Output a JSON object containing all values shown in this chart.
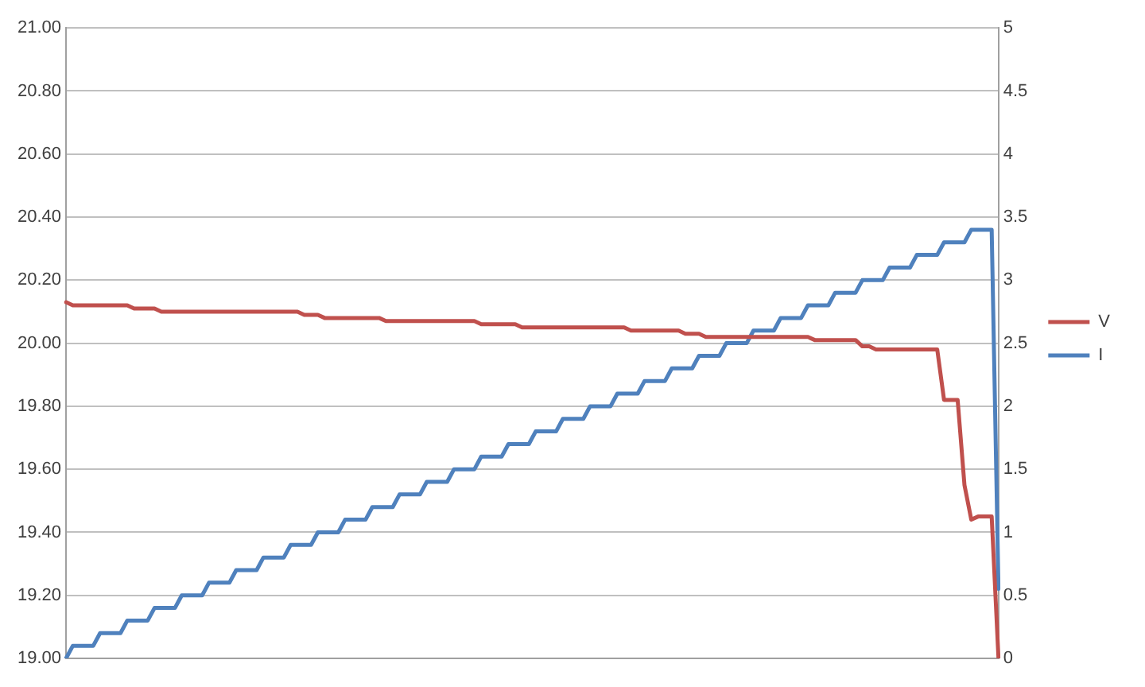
{
  "chart_data": {
    "type": "line",
    "categories": [
      null,
      null,
      null,
      null,
      null,
      null,
      null,
      null,
      null,
      null,
      null,
      null,
      null,
      null,
      null,
      null,
      null,
      null,
      null,
      null,
      null,
      null,
      null,
      null,
      null,
      null,
      null,
      null,
      null,
      null,
      null,
      null,
      null,
      null,
      null,
      null,
      null,
      null,
      null,
      null,
      null,
      null,
      null,
      null,
      null,
      null,
      null,
      null,
      null,
      null,
      null,
      null,
      null,
      null,
      null,
      null,
      null,
      null,
      null,
      null,
      null,
      null,
      null,
      null,
      null,
      null,
      null,
      null,
      null,
      null,
      null,
      null,
      null,
      null,
      null,
      null,
      null,
      null,
      null,
      null,
      null,
      null,
      null,
      null,
      null,
      null,
      null,
      null,
      null,
      null,
      null,
      null,
      null,
      null,
      null,
      null,
      null,
      null,
      null,
      null,
      null,
      null,
      null,
      null,
      null,
      null,
      null,
      null,
      null,
      null,
      null,
      null,
      null,
      null,
      null,
      null,
      null,
      null,
      null,
      null,
      null,
      null,
      null,
      null,
      null,
      null,
      null,
      null,
      null,
      null,
      null,
      null,
      null,
      null,
      null,
      null,
      null,
      null
    ],
    "series": [
      {
        "name": "V",
        "color": "#c0504d",
        "values": [
          20.13,
          20.12,
          20.12,
          20.12,
          20.12,
          20.12,
          20.12,
          20.12,
          20.12,
          20.12,
          20.11,
          20.11,
          20.11,
          20.11,
          20.1,
          20.1,
          20.1,
          20.1,
          20.1,
          20.1,
          20.1,
          20.1,
          20.1,
          20.1,
          20.1,
          20.1,
          20.1,
          20.1,
          20.1,
          20.1,
          20.1,
          20.1,
          20.1,
          20.1,
          20.1,
          20.09,
          20.09,
          20.09,
          20.08,
          20.08,
          20.08,
          20.08,
          20.08,
          20.08,
          20.08,
          20.08,
          20.08,
          20.07,
          20.07,
          20.07,
          20.07,
          20.07,
          20.07,
          20.07,
          20.07,
          20.07,
          20.07,
          20.07,
          20.07,
          20.07,
          20.07,
          20.06,
          20.06,
          20.06,
          20.06,
          20.06,
          20.06,
          20.05,
          20.05,
          20.05,
          20.05,
          20.05,
          20.05,
          20.05,
          20.05,
          20.05,
          20.05,
          20.05,
          20.05,
          20.05,
          20.05,
          20.05,
          20.05,
          20.04,
          20.04,
          20.04,
          20.04,
          20.04,
          20.04,
          20.04,
          20.04,
          20.03,
          20.03,
          20.03,
          20.02,
          20.02,
          20.02,
          20.02,
          20.02,
          20.02,
          20.02,
          20.02,
          20.02,
          20.02,
          20.02,
          20.02,
          20.02,
          20.02,
          20.02,
          20.02,
          20.01,
          20.01,
          20.01,
          20.01,
          20.01,
          20.01,
          20.01,
          19.99,
          19.99,
          19.98,
          19.98,
          19.98,
          19.98,
          19.98,
          19.98,
          19.98,
          19.98,
          19.98,
          19.98,
          19.82,
          19.82,
          19.82,
          19.55,
          19.44,
          19.45,
          19.45,
          19.45,
          19.0
        ]
      },
      {
        "name": "I",
        "color": "#4f81bd",
        "axis": "y2",
        "values": [
          0,
          0.1,
          0.1,
          0.1,
          0.1,
          0.2,
          0.2,
          0.2,
          0.2,
          0.3,
          0.3,
          0.3,
          0.3,
          0.4,
          0.4,
          0.4,
          0.4,
          0.5,
          0.5,
          0.5,
          0.5,
          0.6,
          0.6,
          0.6,
          0.6,
          0.7,
          0.7,
          0.7,
          0.7,
          0.8,
          0.8,
          0.8,
          0.8,
          0.9,
          0.9,
          0.9,
          0.9,
          1.0,
          1.0,
          1.0,
          1.0,
          1.1,
          1.1,
          1.1,
          1.1,
          1.2,
          1.2,
          1.2,
          1.2,
          1.3,
          1.3,
          1.3,
          1.3,
          1.4,
          1.4,
          1.4,
          1.4,
          1.5,
          1.5,
          1.5,
          1.5,
          1.6,
          1.6,
          1.6,
          1.6,
          1.7,
          1.7,
          1.7,
          1.7,
          1.8,
          1.8,
          1.8,
          1.8,
          1.9,
          1.9,
          1.9,
          1.9,
          2.0,
          2.0,
          2.0,
          2.0,
          2.1,
          2.1,
          2.1,
          2.1,
          2.2,
          2.2,
          2.2,
          2.2,
          2.3,
          2.3,
          2.3,
          2.3,
          2.4,
          2.4,
          2.4,
          2.4,
          2.5,
          2.5,
          2.5,
          2.5,
          2.6,
          2.6,
          2.6,
          2.6,
          2.7,
          2.7,
          2.7,
          2.7,
          2.8,
          2.8,
          2.8,
          2.8,
          2.9,
          2.9,
          2.9,
          2.9,
          3.0,
          3.0,
          3.0,
          3.0,
          3.1,
          3.1,
          3.1,
          3.1,
          3.2,
          3.2,
          3.2,
          3.2,
          3.3,
          3.3,
          3.3,
          3.3,
          3.4,
          3.4,
          3.4,
          3.4,
          0.55
        ]
      }
    ],
    "ylim": [
      19,
      21
    ],
    "yticks": [
      {
        "value": 19,
        "label": "19.00"
      },
      {
        "value": 19.2,
        "label": "19.20"
      },
      {
        "value": 19.4,
        "label": "19.40"
      },
      {
        "value": 19.6,
        "label": "19.60"
      },
      {
        "value": 19.8,
        "label": "19.80"
      },
      {
        "value": 20,
        "label": "20.00"
      },
      {
        "value": 20.2,
        "label": "20.20"
      },
      {
        "value": 20.4,
        "label": "20.40"
      },
      {
        "value": 20.6,
        "label": "20.60"
      },
      {
        "value": 20.8,
        "label": "20.80"
      },
      {
        "value": 21,
        "label": "21.00"
      }
    ],
    "y2lim": [
      0,
      5
    ],
    "y2ticks": [
      0,
      0.5,
      1,
      1.5,
      2,
      2.5,
      3,
      3.5,
      4,
      4.5,
      5
    ],
    "grid": "y",
    "legend": "right",
    "marker": "none",
    "line_style": "solid"
  }
}
